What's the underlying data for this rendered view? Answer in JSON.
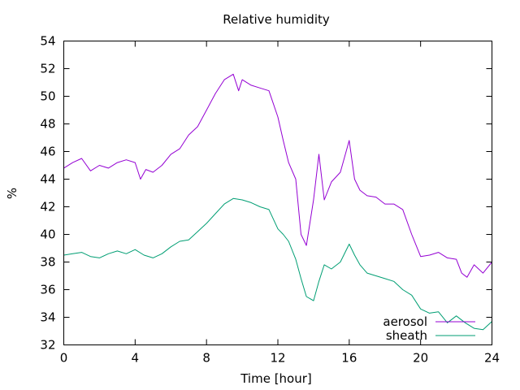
{
  "chart_data": {
    "type": "line",
    "title": "Relative humidity",
    "xlabel": "Time [hour]",
    "ylabel": "%",
    "xlim": [
      0,
      24
    ],
    "ylim": [
      32,
      54
    ],
    "xticks": [
      0,
      4,
      8,
      12,
      16,
      20,
      24
    ],
    "yticks": [
      32,
      34,
      36,
      38,
      40,
      42,
      44,
      46,
      48,
      50,
      52,
      54
    ],
    "grid": false,
    "legend_position": "bottom-right",
    "series": [
      {
        "name": "aerosol",
        "color": "#9400d3",
        "x": [
          0,
          0.5,
          1,
          1.5,
          2,
          2.5,
          3,
          3.5,
          4,
          4.3,
          4.6,
          5,
          5.5,
          6,
          6.5,
          7,
          7.5,
          8,
          8.5,
          9,
          9.5,
          9.8,
          10,
          10.5,
          11,
          11.5,
          12,
          12.3,
          12.6,
          13,
          13.3,
          13.6,
          14,
          14.3,
          14.6,
          15,
          15.5,
          16,
          16.3,
          16.6,
          17,
          17.5,
          18,
          18.5,
          19,
          19.5,
          20,
          20.5,
          21,
          21.5,
          22,
          22.3,
          22.6,
          23,
          23.5,
          24
        ],
        "y": [
          44.8,
          45.2,
          45.5,
          44.6,
          45.0,
          44.8,
          45.2,
          45.4,
          45.2,
          44.0,
          44.7,
          44.5,
          45.0,
          45.8,
          46.2,
          47.2,
          47.8,
          49.0,
          50.2,
          51.2,
          51.6,
          50.4,
          51.2,
          50.8,
          50.6,
          50.4,
          48.5,
          46.8,
          45.2,
          44.0,
          40.0,
          39.2,
          42.5,
          45.8,
          42.5,
          43.8,
          44.5,
          46.8,
          44.0,
          43.2,
          42.8,
          42.7,
          42.2,
          42.2,
          41.8,
          40.0,
          38.4,
          38.5,
          38.7,
          38.3,
          38.2,
          37.2,
          36.9,
          37.8,
          37.2,
          38.0
        ]
      },
      {
        "name": "sheath",
        "color": "#009e73",
        "x": [
          0,
          0.5,
          1,
          1.5,
          2,
          2.5,
          3,
          3.5,
          4,
          4.5,
          5,
          5.5,
          6,
          6.5,
          7,
          7.5,
          8,
          8.5,
          9,
          9.5,
          10,
          10.5,
          11,
          11.5,
          12,
          12.3,
          12.6,
          13,
          13.3,
          13.6,
          14,
          14.3,
          14.6,
          15,
          15.5,
          16,
          16.3,
          16.6,
          17,
          17.5,
          18,
          18.5,
          19,
          19.5,
          20,
          20.5,
          21,
          21.5,
          22,
          22.5,
          23,
          23.5,
          24
        ],
        "y": [
          38.5,
          38.6,
          38.7,
          38.4,
          38.3,
          38.6,
          38.8,
          38.6,
          38.9,
          38.5,
          38.3,
          38.6,
          39.1,
          39.5,
          39.6,
          40.2,
          40.8,
          41.5,
          42.2,
          42.6,
          42.5,
          42.3,
          42.0,
          41.8,
          40.4,
          40.0,
          39.5,
          38.2,
          36.8,
          35.5,
          35.2,
          36.6,
          37.8,
          37.5,
          38.0,
          39.3,
          38.5,
          37.8,
          37.2,
          37.0,
          36.8,
          36.6,
          36.0,
          35.6,
          34.6,
          34.3,
          34.4,
          33.6,
          34.1,
          33.6,
          33.2,
          33.1,
          33.7
        ]
      }
    ]
  }
}
